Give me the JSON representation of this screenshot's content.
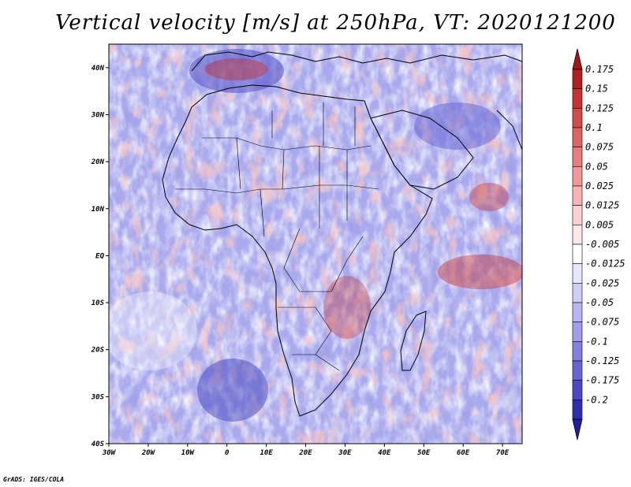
{
  "title": "Vertical velocity [m/s] at 250hPa, VT: 2020121200",
  "footer": "GrADS: IGES/COLA",
  "map": {
    "lon_range": [
      -30,
      75
    ],
    "lat_range": [
      -40,
      45
    ],
    "lat_ticks": [
      {
        "value": 40,
        "label": "40N"
      },
      {
        "value": 30,
        "label": "30N"
      },
      {
        "value": 20,
        "label": "20N"
      },
      {
        "value": 10,
        "label": "10N"
      },
      {
        "value": 0,
        "label": "EQ"
      },
      {
        "value": -10,
        "label": "10S"
      },
      {
        "value": -20,
        "label": "20S"
      },
      {
        "value": -30,
        "label": "30S"
      },
      {
        "value": -40,
        "label": "40S"
      }
    ],
    "lon_ticks": [
      {
        "value": -30,
        "label": "30W"
      },
      {
        "value": -20,
        "label": "20W"
      },
      {
        "value": -10,
        "label": "10W"
      },
      {
        "value": 0,
        "label": "0"
      },
      {
        "value": 10,
        "label": "10E"
      },
      {
        "value": 20,
        "label": "20E"
      },
      {
        "value": 30,
        "label": "30E"
      },
      {
        "value": 40,
        "label": "40E"
      },
      {
        "value": 50,
        "label": "50E"
      },
      {
        "value": 60,
        "label": "60E"
      },
      {
        "value": 70,
        "label": "70E"
      }
    ]
  },
  "colorbar": {
    "levels": [
      {
        "label": "0.175",
        "color": "#b02020"
      },
      {
        "label": "0.15",
        "color": "#c43434"
      },
      {
        "label": "0.125",
        "color": "#d24c4c"
      },
      {
        "label": "0.1",
        "color": "#de6464"
      },
      {
        "label": "0.075",
        "color": "#e87d7d"
      },
      {
        "label": "0.05",
        "color": "#f09898"
      },
      {
        "label": "0.025",
        "color": "#f6b4b4"
      },
      {
        "label": "0.0125",
        "color": "#fad0d0"
      },
      {
        "label": "0.005",
        "color": "#fce8e8"
      },
      {
        "label": "-0.005",
        "color": "#ffffff"
      },
      {
        "label": "-0.0125",
        "color": "#e6e6fa"
      },
      {
        "label": "-0.025",
        "color": "#cfcff6"
      },
      {
        "label": "-0.05",
        "color": "#b6b6f0"
      },
      {
        "label": "-0.075",
        "color": "#9d9de8"
      },
      {
        "label": "-0.1",
        "color": "#8282de"
      },
      {
        "label": "-0.125",
        "color": "#6666d2"
      },
      {
        "label": "-0.175",
        "color": "#4a4ac4"
      },
      {
        "label": "-0.2",
        "color": "#2e2eb0"
      }
    ],
    "top_color": "#a01818",
    "bottom_color": "#2020a0"
  }
}
